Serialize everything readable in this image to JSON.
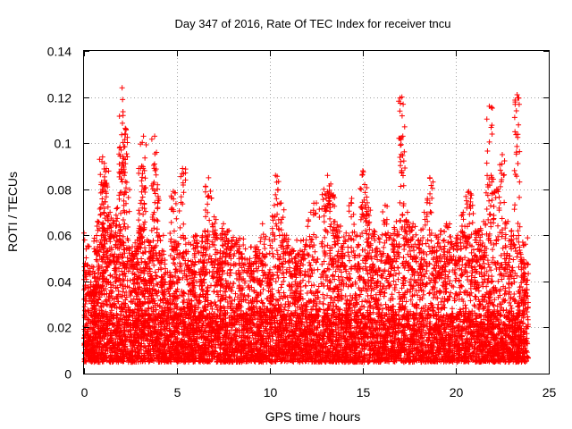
{
  "chart_data": {
    "type": "scatter",
    "title": "Day 347 of 2016, Rate Of TEC Index for receiver tncu",
    "xlabel": "GPS time / hours",
    "ylabel": "ROTI / TECUs",
    "xlim": [
      0,
      25
    ],
    "ylim": [
      0,
      0.14
    ],
    "x_ticks": [
      "0",
      "5",
      "10",
      "15",
      "20",
      "25"
    ],
    "y_ticks": [
      "0",
      "0.02",
      "0.04",
      "0.06",
      "0.08",
      "0.1",
      "0.12",
      "0.14"
    ],
    "grid": true,
    "legend": "none",
    "marker": "plus",
    "color": "#ff0000",
    "x_range_observed": [
      0,
      23.9
    ],
    "baseline_band": [
      0.005,
      0.025
    ],
    "peaks": [
      {
        "x": 0.0,
        "y": 0.061
      },
      {
        "x": 0.2,
        "y": 0.047
      },
      {
        "x": 0.5,
        "y": 0.038
      },
      {
        "x": 0.7,
        "y": 0.064
      },
      {
        "x": 0.9,
        "y": 0.072
      },
      {
        "x": 1.0,
        "y": 0.094
      },
      {
        "x": 1.1,
        "y": 0.083
      },
      {
        "x": 1.2,
        "y": 0.089
      },
      {
        "x": 1.4,
        "y": 0.07
      },
      {
        "x": 1.6,
        "y": 0.065
      },
      {
        "x": 1.8,
        "y": 0.072
      },
      {
        "x": 2.0,
        "y": 0.097
      },
      {
        "x": 2.05,
        "y": 0.124
      },
      {
        "x": 2.1,
        "y": 0.112
      },
      {
        "x": 2.2,
        "y": 0.104
      },
      {
        "x": 2.3,
        "y": 0.083
      },
      {
        "x": 2.6,
        "y": 0.055
      },
      {
        "x": 2.8,
        "y": 0.052
      },
      {
        "x": 3.0,
        "y": 0.064
      },
      {
        "x": 3.1,
        "y": 0.09
      },
      {
        "x": 3.2,
        "y": 0.103
      },
      {
        "x": 3.4,
        "y": 0.058
      },
      {
        "x": 3.6,
        "y": 0.052
      },
      {
        "x": 3.8,
        "y": 0.103
      },
      {
        "x": 3.9,
        "y": 0.096
      },
      {
        "x": 4.2,
        "y": 0.05
      },
      {
        "x": 4.5,
        "y": 0.044
      },
      {
        "x": 4.8,
        "y": 0.079
      },
      {
        "x": 5.0,
        "y": 0.055
      },
      {
        "x": 5.3,
        "y": 0.089
      },
      {
        "x": 5.5,
        "y": 0.053
      },
      {
        "x": 5.8,
        "y": 0.047
      },
      {
        "x": 6.0,
        "y": 0.06
      },
      {
        "x": 6.3,
        "y": 0.055
      },
      {
        "x": 6.5,
        "y": 0.062
      },
      {
        "x": 6.7,
        "y": 0.085
      },
      {
        "x": 7.0,
        "y": 0.068
      },
      {
        "x": 7.3,
        "y": 0.05
      },
      {
        "x": 7.5,
        "y": 0.065
      },
      {
        "x": 7.8,
        "y": 0.062
      },
      {
        "x": 8.2,
        "y": 0.058
      },
      {
        "x": 8.5,
        "y": 0.052
      },
      {
        "x": 9.0,
        "y": 0.048
      },
      {
        "x": 9.3,
        "y": 0.055
      },
      {
        "x": 9.6,
        "y": 0.065
      },
      {
        "x": 10.0,
        "y": 0.044
      },
      {
        "x": 10.3,
        "y": 0.086
      },
      {
        "x": 10.6,
        "y": 0.074
      },
      {
        "x": 10.9,
        "y": 0.06
      },
      {
        "x": 11.2,
        "y": 0.054
      },
      {
        "x": 11.5,
        "y": 0.052
      },
      {
        "x": 11.8,
        "y": 0.058
      },
      {
        "x": 12.2,
        "y": 0.07
      },
      {
        "x": 12.5,
        "y": 0.074
      },
      {
        "x": 12.9,
        "y": 0.08
      },
      {
        "x": 13.1,
        "y": 0.086
      },
      {
        "x": 13.3,
        "y": 0.078
      },
      {
        "x": 13.5,
        "y": 0.066
      },
      {
        "x": 13.8,
        "y": 0.064
      },
      {
        "x": 14.1,
        "y": 0.061
      },
      {
        "x": 14.4,
        "y": 0.076
      },
      {
        "x": 14.7,
        "y": 0.06
      },
      {
        "x": 15.0,
        "y": 0.088
      },
      {
        "x": 15.1,
        "y": 0.082
      },
      {
        "x": 15.3,
        "y": 0.072
      },
      {
        "x": 15.6,
        "y": 0.062
      },
      {
        "x": 15.9,
        "y": 0.057
      },
      {
        "x": 16.2,
        "y": 0.073
      },
      {
        "x": 16.5,
        "y": 0.06
      },
      {
        "x": 16.8,
        "y": 0.066
      },
      {
        "x": 17.1,
        "y": 0.12
      },
      {
        "x": 17.15,
        "y": 0.103
      },
      {
        "x": 17.4,
        "y": 0.07
      },
      {
        "x": 17.7,
        "y": 0.065
      },
      {
        "x": 18.0,
        "y": 0.058
      },
      {
        "x": 18.3,
        "y": 0.07
      },
      {
        "x": 18.6,
        "y": 0.085
      },
      {
        "x": 18.9,
        "y": 0.06
      },
      {
        "x": 19.2,
        "y": 0.062
      },
      {
        "x": 19.5,
        "y": 0.065
      },
      {
        "x": 19.8,
        "y": 0.056
      },
      {
        "x": 20.1,
        "y": 0.06
      },
      {
        "x": 20.4,
        "y": 0.07
      },
      {
        "x": 20.7,
        "y": 0.079
      },
      {
        "x": 20.9,
        "y": 0.073
      },
      {
        "x": 21.2,
        "y": 0.062
      },
      {
        "x": 21.5,
        "y": 0.066
      },
      {
        "x": 21.8,
        "y": 0.116
      },
      {
        "x": 21.9,
        "y": 0.086
      },
      {
        "x": 22.2,
        "y": 0.08
      },
      {
        "x": 22.5,
        "y": 0.095
      },
      {
        "x": 22.8,
        "y": 0.066
      },
      {
        "x": 23.0,
        "y": 0.062
      },
      {
        "x": 23.3,
        "y": 0.121
      },
      {
        "x": 23.6,
        "y": 0.057
      },
      {
        "x": 23.8,
        "y": 0.048
      }
    ]
  }
}
